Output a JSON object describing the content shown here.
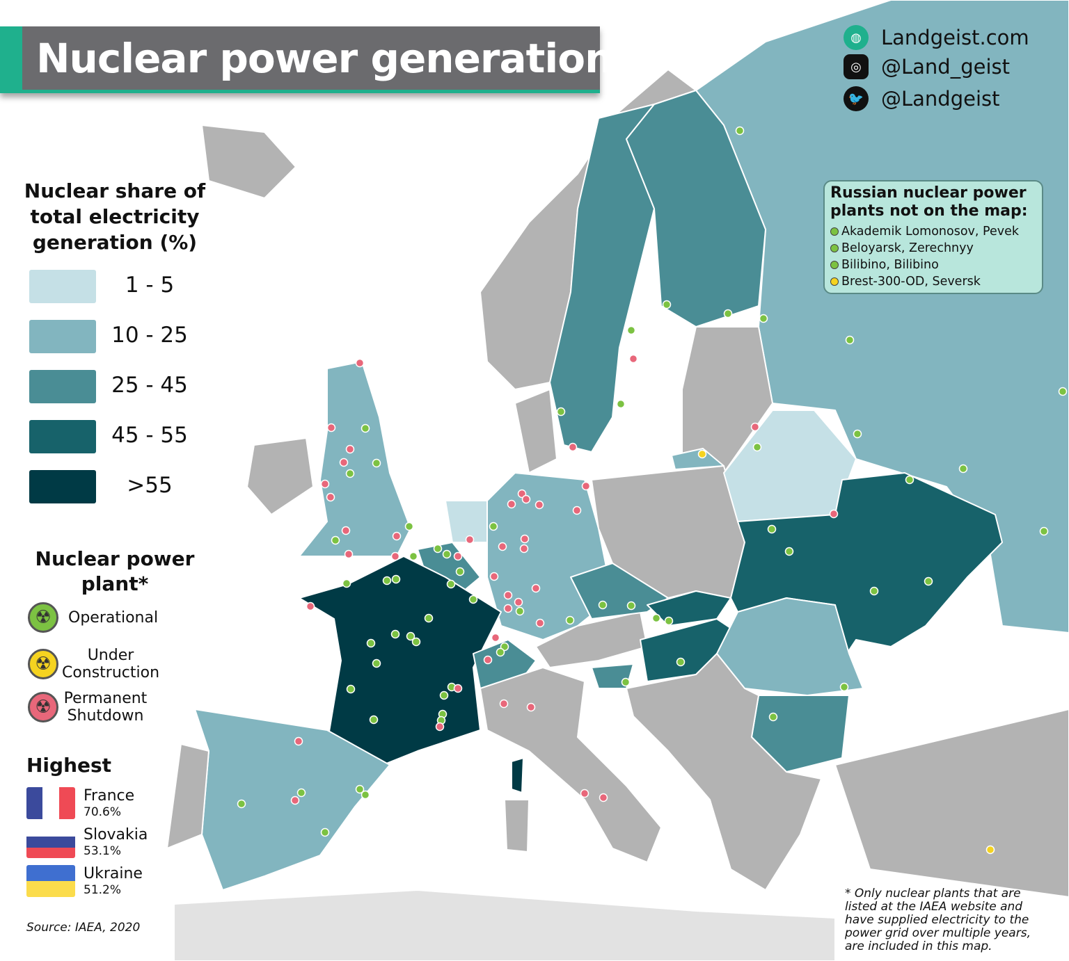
{
  "title": "Nuclear power generation",
  "social": [
    {
      "icon": "globe-icon",
      "text": "Landgeist.com"
    },
    {
      "icon": "instagram-icon",
      "text": "@Land_geist"
    },
    {
      "icon": "twitter-icon",
      "text": "@Landgeist"
    }
  ],
  "colors": {
    "c1_5": "#c5e0e6",
    "c10_25": "#82b5bf",
    "c25_45": "#4a8d95",
    "c45_55": "#17626a",
    "c55": "#003a45",
    "no_data": "#b3b3b3",
    "operational": "#7cc242",
    "under_construction": "#f5d320",
    "shutdown": "#e8677a",
    "accent": "#1fb08d"
  },
  "legend": {
    "title": "Nuclear share of total electricity generation (%)",
    "bins": [
      {
        "label": "1  -  5",
        "color": "#c5e0e6"
      },
      {
        "label": "10 - 25",
        "color": "#82b5bf"
      },
      {
        "label": "25 - 45",
        "color": "#4a8d95"
      },
      {
        "label": "45 - 55",
        "color": "#17626a"
      },
      {
        "label": ">55",
        "color": "#003a45"
      }
    ]
  },
  "plants": {
    "title": "Nuclear power plant*",
    "items": [
      {
        "label": "Operational",
        "icon": "radiation-icon",
        "color": "#7cc242"
      },
      {
        "label": "Under Construction",
        "icon": "radiation-icon",
        "color": "#f5d320"
      },
      {
        "label": "Permanent Shutdown",
        "icon": "radiation-icon",
        "color": "#e8677a"
      }
    ]
  },
  "highest": {
    "title": "Highest",
    "items": [
      {
        "country": "France",
        "value": "70.6%"
      },
      {
        "country": "Slovakia",
        "value": "53.1%"
      },
      {
        "country": "Ukraine",
        "value": "51.2%"
      }
    ]
  },
  "russia_box": {
    "title": "Russian nuclear power plants not on the map:",
    "items": [
      {
        "text": "Akademik Lomonosov, Pevek",
        "status": "operational"
      },
      {
        "text": "Beloyarsk, Zerechnyy",
        "status": "operational"
      },
      {
        "text": "Bilibino, Bilibino",
        "status": "operational"
      },
      {
        "text": "Brest-300-OD, Seversk",
        "status": "under_construction"
      }
    ]
  },
  "source": "Source: IAEA, 2020",
  "note": "* Only nuclear plants that are listed at the IAEA website and have supplied electricity to the power grid over multiple years, are included in this map."
}
